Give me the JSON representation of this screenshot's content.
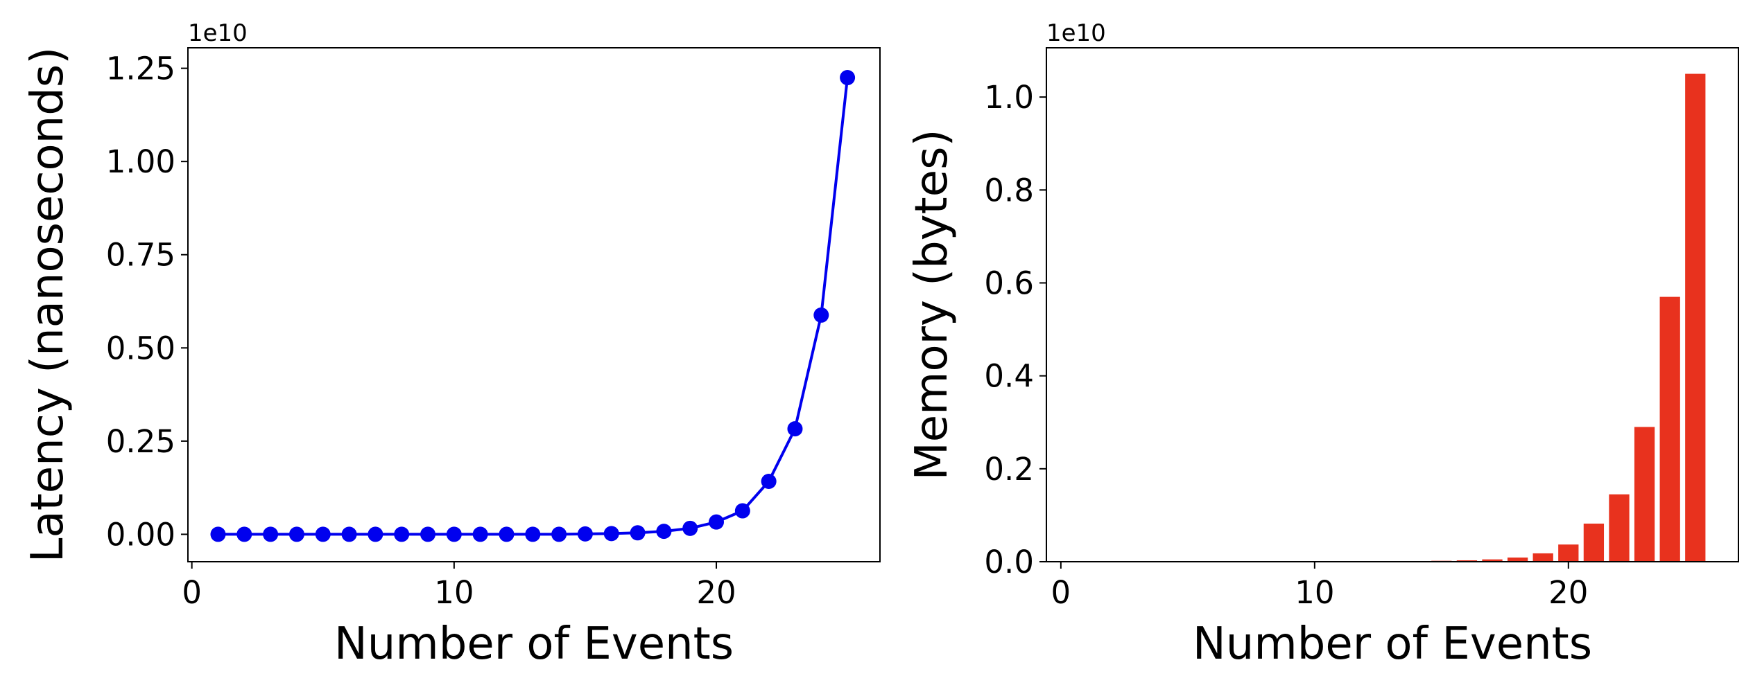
{
  "chart_data": [
    {
      "type": "line",
      "xlabel": "Number of Events",
      "ylabel": "Latency (nanoseconds)",
      "y_offset_label": "1e10",
      "x": [
        1,
        2,
        3,
        4,
        5,
        6,
        7,
        8,
        9,
        10,
        11,
        12,
        13,
        14,
        15,
        16,
        17,
        18,
        19,
        20,
        21,
        22,
        23,
        24,
        25
      ],
      "values": [
        0,
        0,
        0,
        0,
        0,
        0,
        0,
        0,
        0,
        0,
        0,
        0,
        0,
        0,
        0.001,
        0.002,
        0.004,
        0.008,
        0.016,
        0.033,
        0.063,
        0.142,
        0.283,
        0.588,
        1.225
      ],
      "color": "#0000ee",
      "xlim": [
        -0.15,
        26.24
      ],
      "ylim": [
        -0.0735,
        1.305
      ],
      "xticks": [
        0,
        10,
        20
      ],
      "yticks": [
        {
          "value": 0,
          "label": "0.00"
        },
        {
          "value": 0.25,
          "label": "0.25"
        },
        {
          "value": 0.5,
          "label": "0.50"
        },
        {
          "value": 0.75,
          "label": "0.75"
        },
        {
          "value": 1,
          "label": "1.00"
        },
        {
          "value": 1.25,
          "label": "1.25"
        }
      ]
    },
    {
      "type": "bar",
      "xlabel": "Number of Events",
      "ylabel": "Memory (bytes)",
      "y_offset_label": "1e10",
      "x": [
        1,
        2,
        3,
        4,
        5,
        6,
        7,
        8,
        9,
        10,
        11,
        12,
        13,
        14,
        15,
        16,
        17,
        18,
        19,
        20,
        21,
        22,
        23,
        24,
        25
      ],
      "values": [
        0,
        0,
        0,
        0,
        0,
        0,
        0,
        0,
        0,
        0,
        0,
        0,
        0,
        0.001,
        0.002,
        0.003,
        0.005,
        0.009,
        0.018,
        0.037,
        0.082,
        0.145,
        0.29,
        0.57,
        1.05
      ],
      "color": "#e8321e",
      "xlim": [
        -0.57,
        26.7
      ],
      "ylim": [
        0,
        1.106
      ],
      "xticks": [
        0,
        10,
        20
      ],
      "yticks": [
        {
          "value": 0,
          "label": "0.0"
        },
        {
          "value": 0.2,
          "label": "0.2"
        },
        {
          "value": 0.4,
          "label": "0.4"
        },
        {
          "value": 0.6,
          "label": "0.6"
        },
        {
          "value": 0.8,
          "label": "0.8"
        },
        {
          "value": 1,
          "label": "1.0"
        }
      ]
    }
  ]
}
